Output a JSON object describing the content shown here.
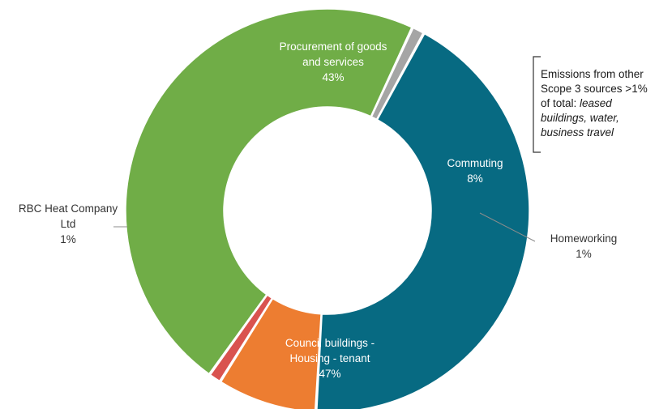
{
  "chart_data": {
    "type": "pie",
    "style": "donut",
    "slices": [
      {
        "label_lines": [
          "Procurement of goods",
          "and services"
        ],
        "value_label": "43%",
        "value": 43,
        "color": "#076a82",
        "label_inside": true
      },
      {
        "label_lines": [
          "Commuting"
        ],
        "value_label": "8%",
        "value": 8,
        "color": "#ed7d31",
        "label_inside": true
      },
      {
        "label_lines": [
          "Homeworking"
        ],
        "value_label": "1%",
        "value": 1,
        "color": "#d9534f",
        "label_inside": false
      },
      {
        "label_lines": [
          "Council buildings -",
          "Housing - tenant"
        ],
        "value_label": "47%",
        "value": 47,
        "color": "#70ad47",
        "label_inside": true
      },
      {
        "label_lines": [
          "RBC Heat Company",
          "Ltd"
        ],
        "value_label": "1%",
        "value": 1,
        "color": "#a5a5a5",
        "label_inside": false
      }
    ]
  },
  "annotation": {
    "line1": "Emissions from other",
    "line2": "Scope 3 sources >1%",
    "line3_plain": "of total: ",
    "line3_italic": "leased",
    "line4": "buildings, water,",
    "line5": "business travel"
  }
}
